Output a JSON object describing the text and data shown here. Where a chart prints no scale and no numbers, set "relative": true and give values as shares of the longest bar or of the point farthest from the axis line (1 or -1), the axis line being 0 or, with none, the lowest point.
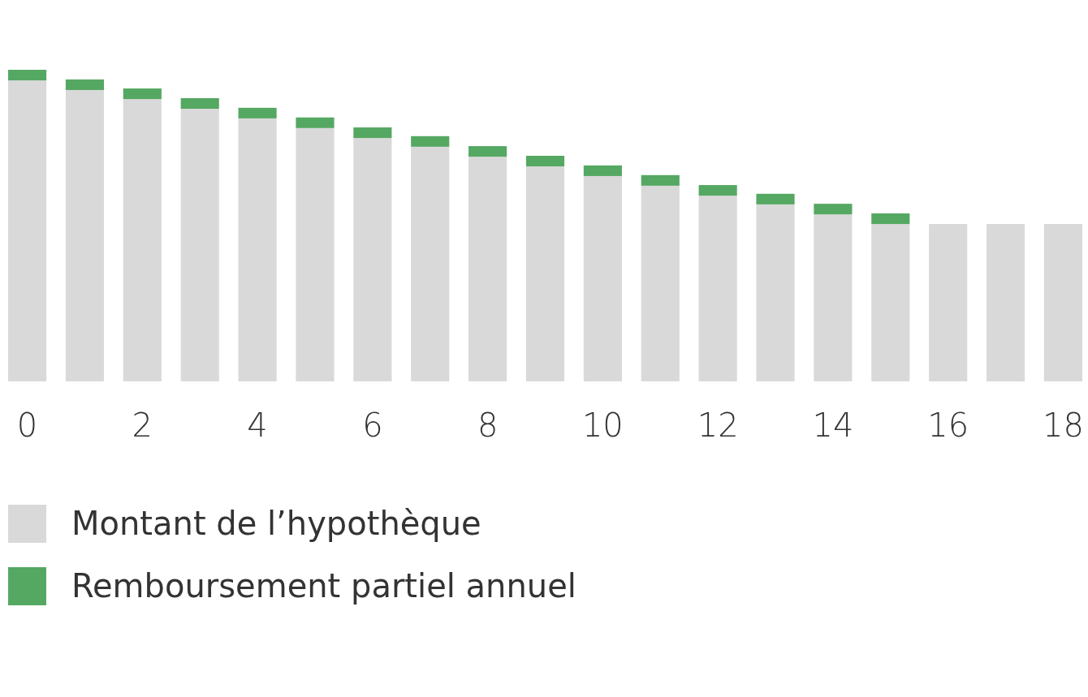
{
  "chart_data": {
    "type": "bar",
    "stacked": true,
    "relative": true,
    "legend": "bottom",
    "categories": [
      "0",
      null,
      "2",
      null,
      "4",
      null,
      "6",
      null,
      "8",
      null,
      "10",
      null,
      "12",
      null,
      "14",
      null,
      "16",
      null,
      "18"
    ],
    "series": [
      {
        "name": "Montant de l’hypothèque",
        "color": "#d9d9d9",
        "values": [
          0.966,
          0.935,
          0.906,
          0.875,
          0.844,
          0.813,
          0.781,
          0.753,
          0.721,
          0.69,
          0.659,
          0.628,
          0.596,
          0.568,
          0.536,
          0.505,
          0.505,
          0.505,
          0.505
        ]
      },
      {
        "name": "Remboursement partiel annuel",
        "color": "#55a862",
        "values": [
          0.034,
          0.034,
          0.034,
          0.034,
          0.034,
          0.034,
          0.034,
          0.034,
          0.034,
          0.034,
          0.034,
          0.034,
          0.034,
          0.034,
          0.034,
          0.034,
          null,
          null,
          null
        ]
      }
    ]
  }
}
